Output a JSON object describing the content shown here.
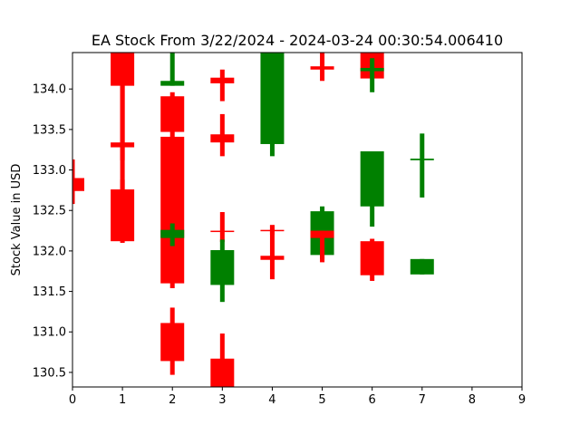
{
  "chart_data": {
    "type": "candlestick",
    "title": "EA Stock From 3/22/2024 - 2024-03-24 00:30:54.006410",
    "xlabel": "",
    "ylabel": "Stock Value in USD",
    "xlim": [
      0,
      9
    ],
    "ylim": [
      130.32,
      134.45
    ],
    "x_ticks": [
      "0",
      "1",
      "2",
      "3",
      "4",
      "5",
      "6",
      "7",
      "8",
      "9"
    ],
    "y_ticks": [
      "130.5",
      "131.0",
      "131.5",
      "132.0",
      "132.5",
      "133.0",
      "133.5",
      "134.0"
    ],
    "colors": {
      "up": "#008000",
      "down": "#ff0000"
    },
    "grid": false,
    "candles": [
      {
        "x": 0.0,
        "open": 132.9,
        "close": 132.74,
        "high": 133.13,
        "low": 132.58
      },
      {
        "x": 1.0,
        "open": 134.45,
        "close": 134.04,
        "high": 134.45,
        "low": 132.5
      },
      {
        "x": 1.0,
        "open": 133.34,
        "close": 133.28,
        "high": 134.04,
        "low": 133.12
      },
      {
        "x": 1.0,
        "open": 132.76,
        "close": 132.12,
        "high": 132.88,
        "low": 132.1
      },
      {
        "x": 2.0,
        "open": 134.04,
        "close": 134.1,
        "high": 134.45,
        "low": 134.04
      },
      {
        "x": 2.0,
        "open": 133.91,
        "close": 133.47,
        "high": 133.96,
        "low": 133.4
      },
      {
        "x": 2.0,
        "open": 133.41,
        "close": 131.6,
        "high": 133.41,
        "low": 131.54
      },
      {
        "x": 2.0,
        "open": 132.16,
        "close": 132.26,
        "high": 132.34,
        "low": 132.06
      },
      {
        "x": 2.0,
        "open": 131.11,
        "close": 130.64,
        "high": 131.3,
        "low": 130.47
      },
      {
        "x": 3.0,
        "open": 134.14,
        "close": 134.07,
        "high": 134.24,
        "low": 133.85
      },
      {
        "x": 3.0,
        "open": 133.44,
        "close": 133.34,
        "high": 133.69,
        "low": 133.17
      },
      {
        "x": 3.0,
        "open": 132.25,
        "close": 132.24,
        "high": 132.48,
        "low": 132.11
      },
      {
        "x": 3.0,
        "open": 131.58,
        "close": 132.01,
        "high": 132.14,
        "low": 131.37
      },
      {
        "x": 3.0,
        "open": 130.67,
        "close": 130.32,
        "high": 130.98,
        "low": 130.32
      },
      {
        "x": 4.0,
        "open": 133.32,
        "close": 134.45,
        "high": 134.45,
        "low": 133.17
      },
      {
        "x": 4.0,
        "open": 132.26,
        "close": 132.25,
        "high": 132.32,
        "low": 132.2
      },
      {
        "x": 4.0,
        "open": 131.94,
        "close": 131.89,
        "high": 132.32,
        "low": 131.65
      },
      {
        "x": 5.0,
        "open": 134.28,
        "close": 134.24,
        "high": 134.45,
        "low": 134.1
      },
      {
        "x": 5.0,
        "open": 131.95,
        "close": 132.49,
        "high": 132.55,
        "low": 131.9
      },
      {
        "x": 5.0,
        "open": 132.25,
        "close": 132.16,
        "high": 132.25,
        "low": 131.86
      },
      {
        "x": 6.0,
        "open": 134.45,
        "close": 134.13,
        "high": 134.45,
        "low": 134.13
      },
      {
        "x": 6.0,
        "open": 134.22,
        "close": 134.26,
        "high": 134.38,
        "low": 133.96
      },
      {
        "x": 6.0,
        "open": 132.55,
        "close": 133.23,
        "high": 133.23,
        "low": 132.3
      },
      {
        "x": 6.0,
        "open": 132.12,
        "close": 131.7,
        "high": 132.15,
        "low": 131.63
      },
      {
        "x": 7.0,
        "open": 133.12,
        "close": 133.14,
        "high": 133.45,
        "low": 132.66
      },
      {
        "x": 7.0,
        "open": 131.71,
        "close": 131.9,
        "high": 131.9,
        "low": 131.71
      }
    ]
  }
}
